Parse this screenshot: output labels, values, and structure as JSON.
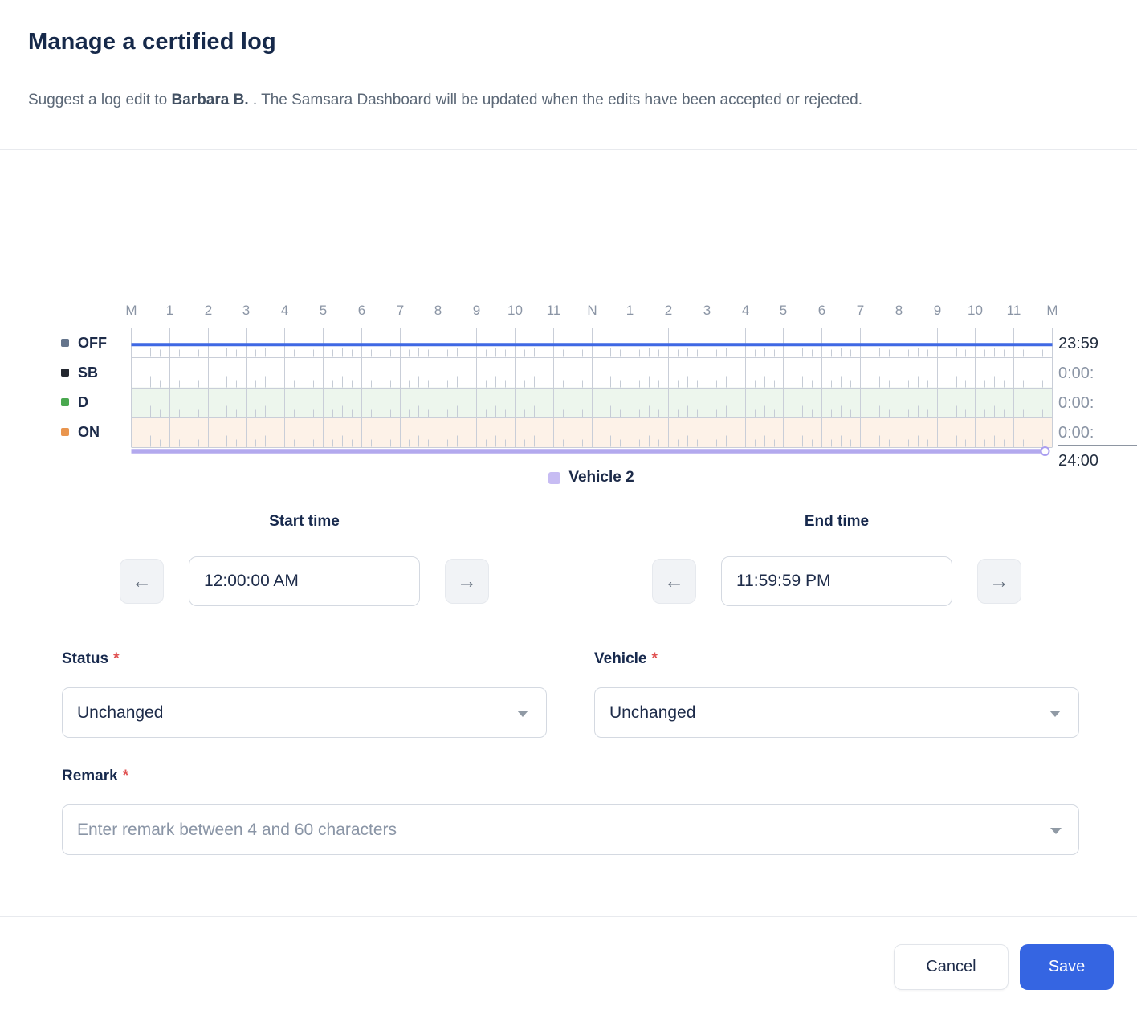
{
  "header": {
    "title": "Manage a certified log",
    "subtitle_prefix": "Suggest a log edit to ",
    "driver_name": "Barbara B.",
    "subtitle_suffix": " . The Samsara Dashboard will be updated when the edits have been accepted or rejected."
  },
  "chart_data": {
    "type": "line",
    "description": "24-hour hours-of-service duty status log grid",
    "hour_labels": [
      "M",
      "1",
      "2",
      "3",
      "4",
      "5",
      "6",
      "7",
      "8",
      "9",
      "10",
      "11",
      "N",
      "1",
      "2",
      "3",
      "4",
      "5",
      "6",
      "7",
      "8",
      "9",
      "10",
      "11",
      "M"
    ],
    "axis_range_hours": [
      0,
      24
    ],
    "grid": true,
    "rows": [
      {
        "key": "OFF",
        "label": "OFF",
        "swatch_color": "#64748b",
        "row_bg": "#ffffff",
        "total": "23:59",
        "total_style": "dark"
      },
      {
        "key": "SB",
        "label": "SB",
        "swatch_color": "#23272f",
        "row_bg": "#ffffff",
        "total": "0:00:",
        "total_style": "gray"
      },
      {
        "key": "D",
        "label": "D",
        "swatch_color": "#4aa84f",
        "row_bg": "#edf6ed",
        "total": "0:00:",
        "total_style": "gray"
      },
      {
        "key": "ON",
        "label": "ON",
        "swatch_color": "#e9954e",
        "row_bg": "#fdf2e8",
        "total": "0:00:",
        "total_style": "gray"
      }
    ],
    "grand_total": "24:00",
    "series": [
      {
        "name": "duty-status",
        "row": "OFF",
        "start_hour": 0,
        "end_hour": 24,
        "color": "#3f68e4"
      },
      {
        "name": "vehicle-track",
        "label": "Vehicle 2",
        "start_hour": 0,
        "end_hour": 24,
        "color": "#b3a9ee"
      }
    ],
    "legend": {
      "label": "Vehicle 2",
      "swatch_color": "#c7bcf3",
      "position": "bottom-center"
    }
  },
  "icons": {
    "arrow_left": "←",
    "arrow_right": "→"
  },
  "start_time": {
    "label": "Start time",
    "value": "12:00:00 AM"
  },
  "end_time": {
    "label": "End time",
    "value": "11:59:59 PM"
  },
  "status_field": {
    "label": "Status",
    "required_mark": "*",
    "value": "Unchanged"
  },
  "vehicle_field": {
    "label": "Vehicle",
    "required_mark": "*",
    "value": "Unchanged"
  },
  "remark_field": {
    "label": "Remark",
    "required_mark": "*",
    "placeholder": "Enter remark between 4 and 60 characters"
  },
  "footer": {
    "cancel_label": "Cancel",
    "save_label": "Save"
  },
  "colors": {
    "accent_blue": "#3565e2",
    "status_line_blue": "#3f68e4",
    "vehicle_purple": "#b3a9ee",
    "required_red": "#e05252"
  }
}
